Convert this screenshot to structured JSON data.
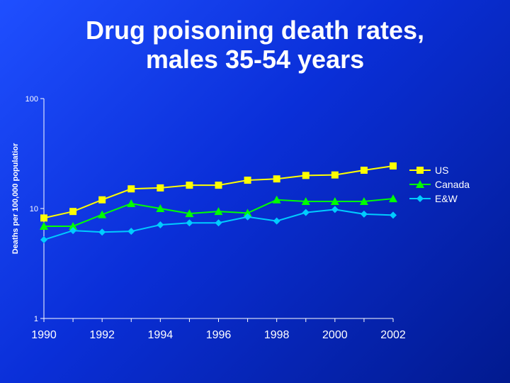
{
  "slide": {
    "title_line1": "Drug poisoning death rates,",
    "title_line2": "males 35-54 years"
  },
  "chart_data": {
    "type": "line",
    "title": "Drug poisoning death rates, males 35-54 years",
    "xlabel": "",
    "ylabel": "Deaths per 100,000 populatior",
    "y_scale": "log",
    "ylim": [
      1,
      100
    ],
    "xlim": [
      1990,
      2002
    ],
    "y_ticks": [
      1,
      10,
      100
    ],
    "x_ticks": [
      1990,
      1992,
      1994,
      1996,
      1998,
      2000,
      2002
    ],
    "grid": false,
    "legend_position": "right",
    "x": [
      1990,
      1991,
      1992,
      1993,
      1994,
      1995,
      1996,
      1997,
      1998,
      1999,
      2000,
      2001,
      2002
    ],
    "series": [
      {
        "name": "US",
        "color": "#ffff00",
        "marker": "square",
        "values": [
          8.2,
          9.4,
          12.0,
          15.1,
          15.4,
          16.3,
          16.3,
          18.1,
          18.6,
          20.0,
          20.2,
          22.3,
          24.4
        ]
      },
      {
        "name": "Canada",
        "color": "#00ff00",
        "marker": "triangle",
        "values": [
          6.9,
          6.9,
          8.8,
          11.1,
          10.0,
          9.0,
          9.4,
          9.1,
          12.0,
          11.6,
          11.6,
          11.6,
          12.3
        ]
      },
      {
        "name": "E&W",
        "color": "#00ccff",
        "marker": "diamond",
        "values": [
          5.2,
          6.3,
          6.1,
          6.2,
          7.1,
          7.4,
          7.4,
          8.4,
          7.7,
          9.2,
          9.8,
          8.9,
          8.7
        ]
      }
    ]
  }
}
